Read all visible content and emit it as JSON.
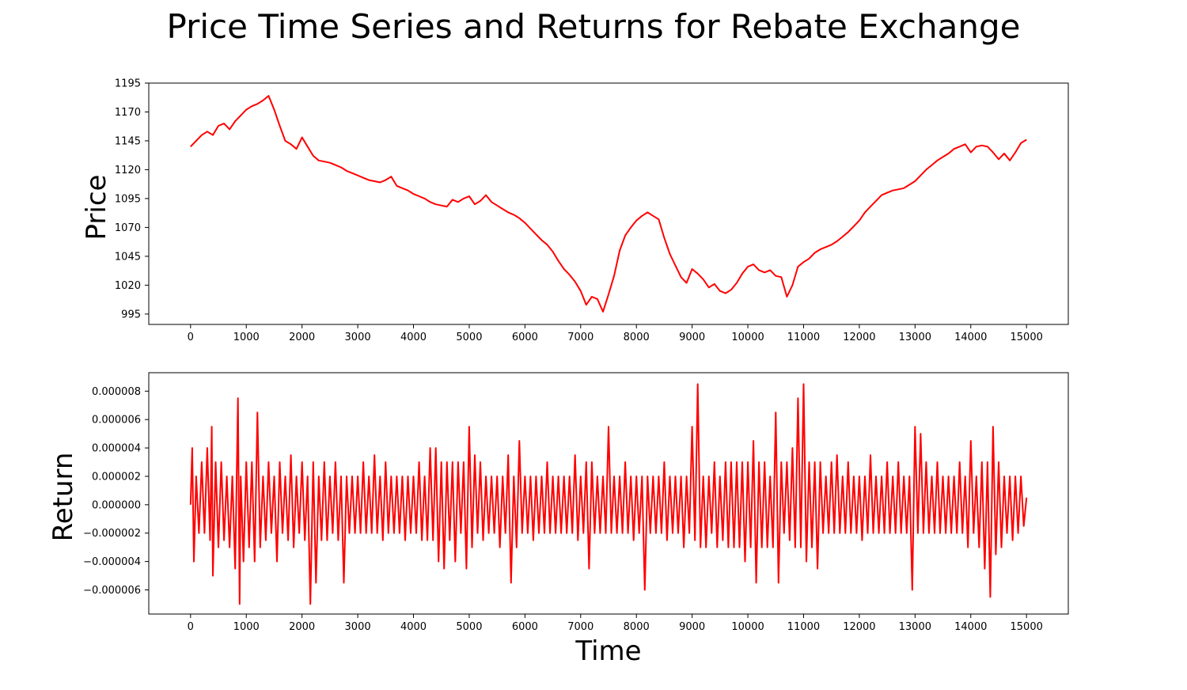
{
  "title": "Price Time Series and Returns for Rebate Exchange",
  "colors": {
    "series": "#ff0000",
    "axes": "#000000",
    "background": "#ffffff"
  },
  "chart_data": [
    {
      "type": "line",
      "ylabel": "Price",
      "xlabel": "",
      "grid": false,
      "xlim": [
        -750,
        15750
      ],
      "ylim": [
        986,
        1195
      ],
      "xticks": [
        0,
        1000,
        2000,
        3000,
        4000,
        5000,
        6000,
        7000,
        8000,
        9000,
        10000,
        11000,
        12000,
        13000,
        14000,
        15000
      ],
      "xtick_labels": [
        "0",
        "1000",
        "2000",
        "3000",
        "4000",
        "5000",
        "6000",
        "7000",
        "8000",
        "9000",
        "10000",
        "11000",
        "12000",
        "13000",
        "14000",
        "15000"
      ],
      "yticks": [
        995,
        1020,
        1045,
        1070,
        1095,
        1120,
        1145,
        1170,
        1195
      ],
      "ytick_labels": [
        "995",
        "1020",
        "1045",
        "1070",
        "1095",
        "1120",
        "1145",
        "1170",
        "1195"
      ],
      "series": [
        {
          "color": "#ff0000",
          "x": [
            0,
            100,
            200,
            300,
            400,
            500,
            600,
            700,
            800,
            900,
            1000,
            1100,
            1200,
            1300,
            1400,
            1500,
            1600,
            1700,
            1800,
            1900,
            2000,
            2100,
            2200,
            2300,
            2400,
            2500,
            2600,
            2700,
            2800,
            2900,
            3000,
            3100,
            3200,
            3300,
            3400,
            3500,
            3600,
            3700,
            3800,
            3900,
            4000,
            4100,
            4200,
            4300,
            4400,
            4500,
            4600,
            4700,
            4800,
            4900,
            5000,
            5100,
            5200,
            5300,
            5400,
            5500,
            5600,
            5700,
            5800,
            5900,
            6000,
            6100,
            6200,
            6300,
            6400,
            6500,
            6600,
            6700,
            6800,
            6900,
            7000,
            7100,
            7200,
            7300,
            7400,
            7500,
            7600,
            7700,
            7800,
            7900,
            8000,
            8100,
            8200,
            8300,
            8400,
            8500,
            8600,
            8700,
            8800,
            8900,
            9000,
            9100,
            9200,
            9300,
            9400,
            9500,
            9600,
            9700,
            9800,
            9900,
            10000,
            10100,
            10200,
            10300,
            10400,
            10500,
            10600,
            10700,
            10800,
            10900,
            11000,
            11100,
            11200,
            11300,
            11400,
            11500,
            11600,
            11700,
            11800,
            11900,
            12000,
            12100,
            12200,
            12300,
            12400,
            12500,
            12600,
            12700,
            12800,
            12900,
            13000,
            13100,
            13200,
            13300,
            13400,
            13500,
            13600,
            13700,
            13800,
            13900,
            14000,
            14100,
            14200,
            14300,
            14400,
            14500,
            14600,
            14700,
            14800,
            14900,
            15000
          ],
          "y": [
            1140,
            1145,
            1150,
            1153,
            1150,
            1158,
            1160,
            1155,
            1162,
            1167,
            1172,
            1175,
            1177,
            1180,
            1184,
            1172,
            1158,
            1145,
            1142,
            1138,
            1148,
            1140,
            1132,
            1128,
            1127,
            1126,
            1124,
            1122,
            1119,
            1117,
            1115,
            1113,
            1111,
            1110,
            1109,
            1111,
            1114,
            1106,
            1104,
            1102,
            1099,
            1097,
            1095,
            1092,
            1090,
            1089,
            1088,
            1094,
            1092,
            1095,
            1097,
            1090,
            1093,
            1098,
            1092,
            1089,
            1086,
            1083,
            1081,
            1078,
            1074,
            1069,
            1064,
            1059,
            1055,
            1049,
            1041,
            1034,
            1029,
            1023,
            1015,
            1003,
            1010,
            1008,
            997,
            1012,
            1028,
            1050,
            1063,
            1070,
            1076,
            1080,
            1083,
            1080,
            1077,
            1061,
            1047,
            1037,
            1027,
            1022,
            1034,
            1030,
            1025,
            1018,
            1021,
            1015,
            1013,
            1016,
            1022,
            1030,
            1036,
            1038,
            1033,
            1031,
            1033,
            1028,
            1027,
            1010,
            1020,
            1036,
            1040,
            1043,
            1048,
            1051,
            1053,
            1055,
            1058,
            1062,
            1066,
            1071,
            1076,
            1083,
            1088,
            1093,
            1098,
            1100,
            1102,
            1103,
            1104,
            1107,
            1110,
            1115,
            1120,
            1124,
            1128,
            1131,
            1134,
            1138,
            1140,
            1142,
            1135,
            1140,
            1141,
            1140,
            1135,
            1129,
            1134,
            1128,
            1135,
            1143,
            1146
          ]
        }
      ]
    },
    {
      "type": "line",
      "ylabel": "Return",
      "xlabel": "Time",
      "grid": false,
      "xlim": [
        -750,
        15750
      ],
      "ylim": [
        -7.7e-06,
        9.3e-06
      ],
      "xticks": [
        0,
        1000,
        2000,
        3000,
        4000,
        5000,
        6000,
        7000,
        8000,
        9000,
        10000,
        11000,
        12000,
        13000,
        14000,
        15000
      ],
      "xtick_labels": [
        "0",
        "1000",
        "2000",
        "3000",
        "4000",
        "5000",
        "6000",
        "7000",
        "8000",
        "9000",
        "10000",
        "11000",
        "12000",
        "13000",
        "14000",
        "15000"
      ],
      "yticks": [
        -6e-06,
        -4e-06,
        -2e-06,
        0.0,
        2e-06,
        4e-06,
        6e-06,
        8e-06
      ],
      "ytick_labels": [
        "−0.000006",
        "−0.000004",
        "−0.000002",
        "0.000000",
        "0.000002",
        "0.000004",
        "0.000006",
        "0.000008"
      ],
      "series": [
        {
          "color": "#ff0000",
          "x": [
            0,
            30,
            60,
            100,
            150,
            200,
            250,
            300,
            350,
            380,
            400,
            450,
            500,
            550,
            600,
            650,
            700,
            750,
            800,
            850,
            880,
            900,
            950,
            1000,
            1050,
            1100,
            1150,
            1200,
            1250,
            1300,
            1350,
            1400,
            1450,
            1500,
            1550,
            1600,
            1650,
            1700,
            1750,
            1800,
            1850,
            1900,
            1950,
            2000,
            2050,
            2100,
            2150,
            2200,
            2250,
            2300,
            2350,
            2400,
            2450,
            2500,
            2550,
            2600,
            2650,
            2700,
            2750,
            2800,
            2850,
            2900,
            2950,
            3000,
            3050,
            3100,
            3150,
            3200,
            3250,
            3300,
            3350,
            3400,
            3450,
            3500,
            3550,
            3600,
            3650,
            3700,
            3750,
            3800,
            3850,
            3900,
            3950,
            4000,
            4050,
            4100,
            4150,
            4200,
            4250,
            4300,
            4350,
            4400,
            4450,
            4500,
            4550,
            4600,
            4650,
            4700,
            4750,
            4800,
            4850,
            4900,
            4950,
            5000,
            5050,
            5100,
            5150,
            5200,
            5250,
            5300,
            5350,
            5400,
            5450,
            5500,
            5550,
            5600,
            5650,
            5700,
            5750,
            5800,
            5850,
            5900,
            5950,
            6000,
            6050,
            6100,
            6150,
            6200,
            6250,
            6300,
            6350,
            6400,
            6450,
            6500,
            6550,
            6600,
            6650,
            6700,
            6750,
            6800,
            6850,
            6900,
            6950,
            7000,
            7050,
            7100,
            7150,
            7200,
            7250,
            7300,
            7350,
            7400,
            7450,
            7500,
            7550,
            7600,
            7650,
            7700,
            7750,
            7800,
            7850,
            7900,
            7950,
            8000,
            8050,
            8100,
            8150,
            8200,
            8250,
            8300,
            8350,
            8400,
            8450,
            8500,
            8550,
            8600,
            8650,
            8700,
            8750,
            8800,
            8850,
            8900,
            8950,
            9000,
            9050,
            9100,
            9150,
            9200,
            9250,
            9300,
            9350,
            9400,
            9450,
            9500,
            9550,
            9600,
            9650,
            9700,
            9750,
            9800,
            9850,
            9900,
            9950,
            10000,
            10050,
            10100,
            10150,
            10200,
            10250,
            10300,
            10350,
            10400,
            10450,
            10500,
            10550,
            10600,
            10650,
            10700,
            10750,
            10800,
            10850,
            10900,
            10950,
            11000,
            11050,
            11100,
            11150,
            11200,
            11250,
            11300,
            11350,
            11400,
            11450,
            11500,
            11550,
            11600,
            11650,
            11700,
            11750,
            11800,
            11850,
            11900,
            11950,
            12000,
            12050,
            12100,
            12150,
            12200,
            12250,
            12300,
            12350,
            12400,
            12450,
            12500,
            12550,
            12600,
            12650,
            12700,
            12750,
            12800,
            12850,
            12900,
            12950,
            13000,
            13050,
            13100,
            13150,
            13200,
            13250,
            13300,
            13350,
            13400,
            13450,
            13500,
            13550,
            13600,
            13650,
            13700,
            13750,
            13800,
            13850,
            13900,
            13950,
            14000,
            14050,
            14100,
            14150,
            14200,
            14250,
            14300,
            14350,
            14400,
            14450,
            14500,
            14550,
            14600,
            14650,
            14700,
            14750,
            14800,
            14850,
            14900,
            14950,
            15000
          ],
          "y": [
            0.0,
            4e-06,
            -4e-06,
            2e-06,
            -2e-06,
            3e-06,
            -2e-06,
            4e-06,
            -2.5e-06,
            5.5e-06,
            -5e-06,
            3e-06,
            -3e-06,
            3e-06,
            -2.5e-06,
            2e-06,
            -3e-06,
            2e-06,
            -4.5e-06,
            7.5e-06,
            -7e-06,
            2e-06,
            -4e-06,
            3e-06,
            -3e-06,
            3e-06,
            -4e-06,
            6.5e-06,
            -3e-06,
            2e-06,
            -2.5e-06,
            3e-06,
            -2e-06,
            2e-06,
            -4e-06,
            3e-06,
            -2e-06,
            2e-06,
            -2.5e-06,
            3.5e-06,
            -3e-06,
            2e-06,
            -2e-06,
            3e-06,
            -2.5e-06,
            2e-06,
            -7e-06,
            3e-06,
            -5.5e-06,
            2e-06,
            -2.5e-06,
            3e-06,
            -2.5e-06,
            2e-06,
            -2e-06,
            3e-06,
            -2.5e-06,
            2e-06,
            -5.5e-06,
            2e-06,
            -2e-06,
            2e-06,
            -2e-06,
            2e-06,
            -2e-06,
            3e-06,
            -2e-06,
            2e-06,
            -2e-06,
            3.5e-06,
            -2e-06,
            2e-06,
            -2.5e-06,
            3e-06,
            -2e-06,
            2e-06,
            -2e-06,
            2e-06,
            -2e-06,
            2e-06,
            -2.5e-06,
            2e-06,
            -2e-06,
            2e-06,
            -2e-06,
            3e-06,
            -2.5e-06,
            2e-06,
            -2.5e-06,
            4e-06,
            -2.5e-06,
            4e-06,
            -4e-06,
            3e-06,
            -4.5e-06,
            3e-06,
            -2.5e-06,
            3e-06,
            -4e-06,
            3e-06,
            -2e-06,
            3e-06,
            -4.5e-06,
            5.5e-06,
            -3e-06,
            3.5e-06,
            -2e-06,
            3e-06,
            -2.5e-06,
            2e-06,
            -2e-06,
            2e-06,
            -2e-06,
            2e-06,
            -3e-06,
            2e-06,
            -2e-06,
            3.5e-06,
            -5.5e-06,
            2e-06,
            -3e-06,
            4.5e-06,
            -2e-06,
            2e-06,
            -2e-06,
            2e-06,
            -2.5e-06,
            2e-06,
            -2e-06,
            2e-06,
            -2e-06,
            3e-06,
            -2e-06,
            2e-06,
            -2e-06,
            2e-06,
            -2e-06,
            2e-06,
            -2e-06,
            2e-06,
            -2e-06,
            3.5e-06,
            -2.5e-06,
            2e-06,
            -2e-06,
            3e-06,
            -4.5e-06,
            3e-06,
            -2e-06,
            2e-06,
            -2e-06,
            2e-06,
            -2e-06,
            5.5e-06,
            -2e-06,
            2e-06,
            -2e-06,
            2e-06,
            -2e-06,
            3e-06,
            -2e-06,
            2e-06,
            -2.5e-06,
            2e-06,
            -2e-06,
            2e-06,
            -6e-06,
            2e-06,
            -2e-06,
            2e-06,
            -2e-06,
            2e-06,
            -2e-06,
            3e-06,
            -2.5e-06,
            2e-06,
            -2e-06,
            2e-06,
            -2e-06,
            2e-06,
            -3e-06,
            2e-06,
            -2e-06,
            5.5e-06,
            -2.5e-06,
            8.5e-06,
            -3e-06,
            2e-06,
            -3e-06,
            2e-06,
            -2e-06,
            3e-06,
            -3e-06,
            2e-06,
            -2.5e-06,
            3e-06,
            -3e-06,
            3e-06,
            -3e-06,
            3e-06,
            -3e-06,
            3e-06,
            -4e-06,
            3e-06,
            -3e-06,
            4.5e-06,
            -5.5e-06,
            3e-06,
            -3e-06,
            3e-06,
            -3e-06,
            2e-06,
            -3e-06,
            6.5e-06,
            -5.5e-06,
            3e-06,
            -2e-06,
            3e-06,
            -2.5e-06,
            4e-06,
            -3e-06,
            7.5e-06,
            -3e-06,
            8.5e-06,
            -4e-06,
            3e-06,
            -3e-06,
            3e-06,
            -4.5e-06,
            3e-06,
            -2e-06,
            2e-06,
            -2e-06,
            3e-06,
            -2e-06,
            3.5e-06,
            -2e-06,
            2e-06,
            -2e-06,
            3e-06,
            -2e-06,
            2e-06,
            -2e-06,
            2e-06,
            -2.5e-06,
            2e-06,
            -2e-06,
            3.5e-06,
            -2e-06,
            2e-06,
            -2e-06,
            2e-06,
            -2e-06,
            3e-06,
            -2e-06,
            2e-06,
            -2e-06,
            3e-06,
            -2e-06,
            2e-06,
            -2e-06,
            2e-06,
            -6e-06,
            5.5e-06,
            -2e-06,
            5e-06,
            -2e-06,
            3e-06,
            -2e-06,
            2e-06,
            -2e-06,
            3e-06,
            -2e-06,
            2e-06,
            -2e-06,
            2e-06,
            -2e-06,
            2e-06,
            -2e-06,
            3e-06,
            -2e-06,
            2e-06,
            -3e-06,
            4.5e-06,
            -2e-06,
            2e-06,
            -3e-06,
            3e-06,
            -4.5e-06,
            3e-06,
            -6.5e-06,
            5.5e-06,
            -3.5e-06,
            3e-06,
            -3e-06,
            2e-06,
            -2e-06,
            2e-06,
            -2.5e-06,
            2e-06,
            -2e-06,
            2e-06,
            -1.5e-06,
            5e-07
          ]
        }
      ]
    }
  ]
}
